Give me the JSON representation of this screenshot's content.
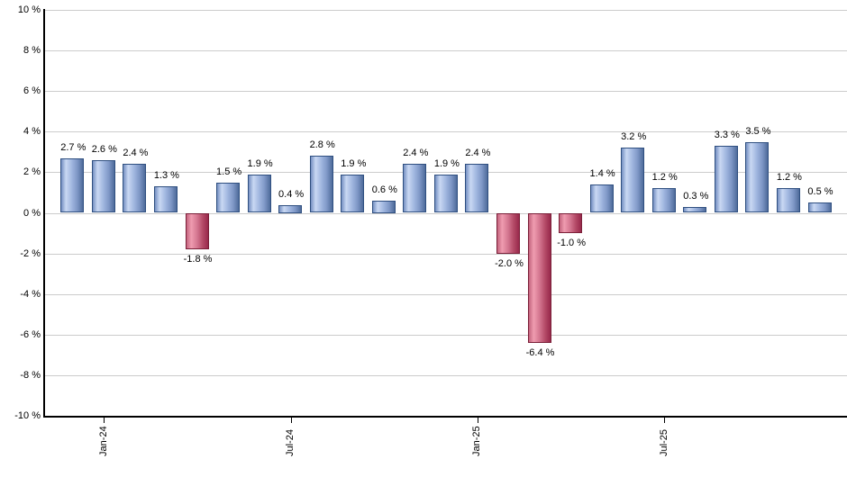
{
  "chart_data": {
    "type": "bar",
    "title": "",
    "xlabel": "",
    "ylabel": "",
    "grid": true,
    "legend": false,
    "y_axis": {
      "min": -10,
      "max": 10,
      "step": 2,
      "tick_labels": [
        "10 %",
        "8 %",
        "6 %",
        "4 %",
        "2 %",
        "0 %",
        "-2 %",
        "-4 %",
        "-6 %",
        "-8 %",
        "-10 %"
      ]
    },
    "x_axis": {
      "ticks": [
        {
          "bar_index": 1,
          "label": "Jan-24"
        },
        {
          "bar_index": 7,
          "label": "Jul-24"
        },
        {
          "bar_index": 13,
          "label": "Jan-25"
        },
        {
          "bar_index": 19,
          "label": "Jul-25"
        }
      ]
    },
    "bars": [
      {
        "value": 2.7,
        "label": "2.7 %"
      },
      {
        "value": 2.6,
        "label": "2.6 %"
      },
      {
        "value": 2.4,
        "label": "2.4 %"
      },
      {
        "value": 1.3,
        "label": "1.3 %"
      },
      {
        "value": -1.8,
        "label": "-1.8 %"
      },
      {
        "value": 1.5,
        "label": "1.5 %"
      },
      {
        "value": 1.9,
        "label": "1.9 %"
      },
      {
        "value": 0.4,
        "label": "0.4 %"
      },
      {
        "value": 2.8,
        "label": "2.8 %"
      },
      {
        "value": 1.9,
        "label": "1.9 %"
      },
      {
        "value": 0.6,
        "label": "0.6 %"
      },
      {
        "value": 2.4,
        "label": "2.4 %"
      },
      {
        "value": 1.9,
        "label": "1.9 %"
      },
      {
        "value": 2.4,
        "label": "2.4 %"
      },
      {
        "value": -2.0,
        "label": "-2.0 %"
      },
      {
        "value": -6.4,
        "label": "-6.4 %"
      },
      {
        "value": -1.0,
        "label": "-1.0 %"
      },
      {
        "value": 1.4,
        "label": "1.4 %"
      },
      {
        "value": 3.2,
        "label": "3.2 %"
      },
      {
        "value": 1.2,
        "label": "1.2 %"
      },
      {
        "value": 0.3,
        "label": "0.3 %"
      },
      {
        "value": 3.3,
        "label": "3.3 %"
      },
      {
        "value": 3.5,
        "label": "3.5 %"
      },
      {
        "value": 1.2,
        "label": "1.2 %"
      },
      {
        "value": 0.5,
        "label": "0.5 %"
      }
    ],
    "colors": {
      "positive_gradient": [
        "#7590c2",
        "#c9d8f3",
        "#9fb5de",
        "#7d96c5",
        "#4e6b9a"
      ],
      "positive_border": "#2f4f80",
      "negative_gradient": [
        "#c4647e",
        "#ef9cb0",
        "#d3758f",
        "#b44a67",
        "#98294b"
      ],
      "negative_border": "#7a1f38",
      "gridline": "#cccccc",
      "axis": "#000000",
      "label_text": "#000000",
      "background": "#ffffff"
    }
  }
}
